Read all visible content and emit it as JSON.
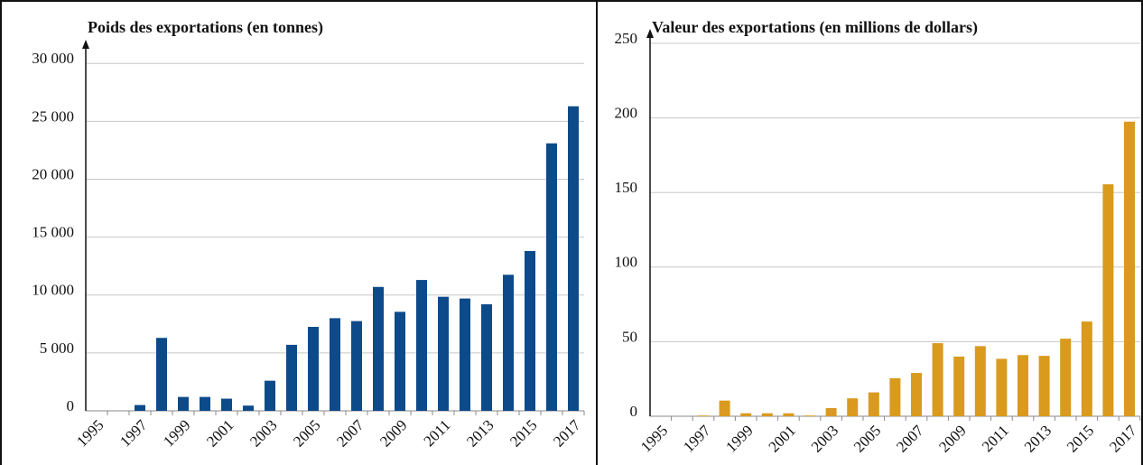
{
  "chart_data": [
    {
      "type": "bar",
      "title": "Poids des exportations (en tonnes)",
      "categories": [
        "1995",
        null,
        "1997",
        null,
        "1999",
        null,
        "2001",
        null,
        "2003",
        null,
        "2005",
        null,
        "2007",
        null,
        "2009",
        null,
        "2011",
        null,
        "2013",
        null,
        "2015",
        null,
        "2017"
      ],
      "values": [
        0,
        0,
        500,
        6300,
        1200,
        1200,
        1050,
        450,
        2600,
        5700,
        7250,
        8000,
        7750,
        10700,
        8550,
        11300,
        9850,
        9700,
        9200,
        11750,
        13800,
        23100,
        26300
      ],
      "color": "#0d4a8a",
      "ylim": [
        0,
        30800
      ],
      "yticks": [
        0,
        {
          "value": 5000,
          "label": "5 000"
        },
        {
          "value": 10000,
          "label": "10 000"
        },
        {
          "value": 15000,
          "label": "15 000"
        },
        {
          "value": 20000,
          "label": "20 000"
        },
        {
          "value": 25000,
          "label": "25 000"
        },
        {
          "value": 30000,
          "label": "30 000"
        }
      ],
      "grid": true
    },
    {
      "type": "bar",
      "title": "Valeur des exportations (en millions de dollars)",
      "categories": [
        "1995",
        null,
        "1997",
        null,
        "1999",
        null,
        "2001",
        null,
        "2003",
        null,
        "2005",
        null,
        "2007",
        null,
        "2009",
        null,
        "2011",
        null,
        "2013",
        null,
        "2015",
        null,
        "2017"
      ],
      "values": [
        0,
        0,
        0.5,
        10.5,
        2,
        2,
        2,
        0.5,
        5.5,
        12,
        16,
        25.5,
        29,
        49,
        40,
        47,
        38.5,
        41,
        40.5,
        52,
        63.5,
        155.5,
        197.5
      ],
      "color": "#d99a1e",
      "ylim": [
        0,
        250
      ],
      "yticks": [
        0,
        50,
        100,
        150,
        200,
        250
      ],
      "grid": true
    }
  ]
}
